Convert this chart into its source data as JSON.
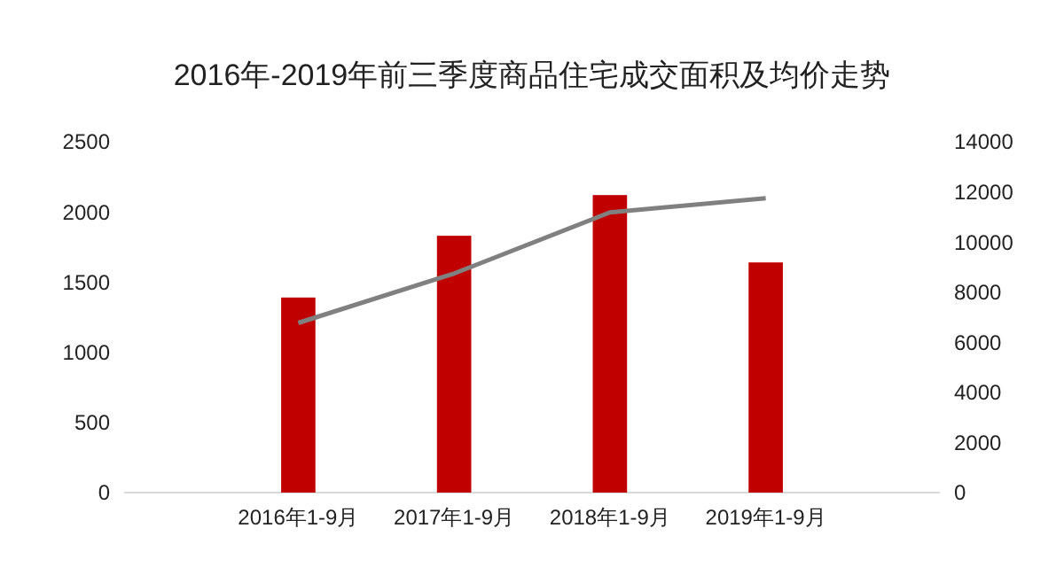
{
  "chart_data": {
    "type": "bar",
    "title": "2016年-2019年前三季度商品住宅成交面积及均价走势",
    "categories": [
      "2016年1-9月",
      "2017年1-9月",
      "2018年1-9月",
      "2019年1-9月"
    ],
    "series": [
      {
        "color": "#c00000",
        "values": [
          1390,
          1830,
          2120,
          1640
        ]
      },
      {
        "type": "line",
        "axis": "y2",
        "color": "#808080",
        "values": [
          6770,
          8740,
          11180,
          11750
        ]
      }
    ],
    "ylim": [
      0,
      2500
    ],
    "yticks": [
      0,
      500,
      1000,
      1500,
      2000,
      2500
    ],
    "y2lim": [
      0,
      14000
    ],
    "y2ticks": [
      0,
      2000,
      4000,
      6000,
      8000,
      10000,
      12000,
      14000
    ],
    "grid": false
  }
}
